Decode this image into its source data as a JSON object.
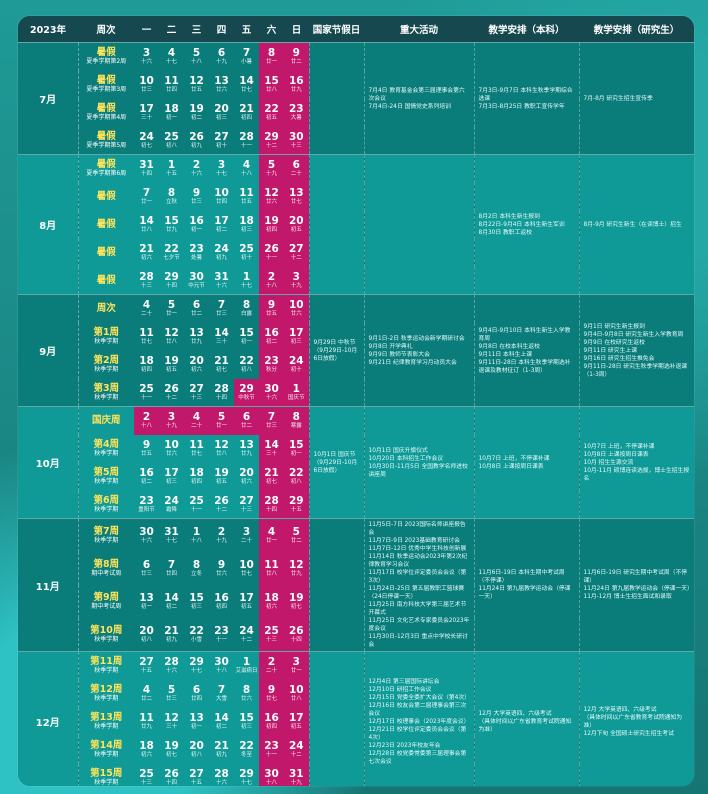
{
  "header": {
    "year": "2023年",
    "week": "周次",
    "d1": "一",
    "d2": "二",
    "d3": "三",
    "d4": "四",
    "d5": "五",
    "d6": "六",
    "d7": "日",
    "holiday": "国家节假日",
    "events": "重大活动",
    "teach_ug": "教学安排（本科）",
    "teach_pg": "教学安排（研究生）"
  },
  "months": [
    {
      "name": "7月",
      "holiday": "",
      "events": "7月4日 教育基金会第三届理事会第六次会议\n7月4日-24日 国情党史系列培训",
      "ug": "7月3日-9月7日 本科生秋季学期综合选课\n7月3日-8月25日 教职工宣传学年",
      "pg": "7月-8月 研究生招生宣传季",
      "rows": [
        {
          "w": "暑假",
          "s": "夏季学期第2周",
          "d": [
            [
              "3",
              "十六"
            ],
            [
              "4",
              "十七"
            ],
            [
              "5",
              "十八"
            ],
            [
              "6",
              "十九"
            ],
            [
              "7",
              "小暑"
            ],
            [
              "8",
              "廿一"
            ],
            [
              "9",
              "廿二"
            ]
          ]
        },
        {
          "w": "暑假",
          "s": "夏季学期第3周",
          "d": [
            [
              "10",
              "廿三"
            ],
            [
              "11",
              "廿四"
            ],
            [
              "12",
              "廿五"
            ],
            [
              "13",
              "廿六"
            ],
            [
              "14",
              "廿七"
            ],
            [
              "15",
              "廿八"
            ],
            [
              "16",
              "廿九"
            ]
          ]
        },
        {
          "w": "暑假",
          "s": "夏季学期第4周",
          "d": [
            [
              "17",
              "三十"
            ],
            [
              "18",
              "初一"
            ],
            [
              "19",
              "初二"
            ],
            [
              "20",
              "初三"
            ],
            [
              "21",
              "初四"
            ],
            [
              "22",
              "初五"
            ],
            [
              "23",
              "大暑"
            ]
          ]
        },
        {
          "w": "暑假",
          "s": "夏季学期第5周",
          "d": [
            [
              "24",
              "初七"
            ],
            [
              "25",
              "初八"
            ],
            [
              "26",
              "初九"
            ],
            [
              "27",
              "初十"
            ],
            [
              "28",
              "十一"
            ],
            [
              "29",
              "十二"
            ],
            [
              "30",
              "十三"
            ]
          ]
        }
      ]
    },
    {
      "name": "8月",
      "holiday": "",
      "events": "",
      "ug": "8月2日 本科生新生报到\n8月22日-9月4日 本科生新生军训\n8月30日 教职工返校",
      "pg": "8月-9月 研究生新生（在读博士）招生",
      "rows": [
        {
          "w": "暑假",
          "s": "夏季学期第6周",
          "d": [
            [
              "31",
              "十四"
            ],
            [
              "1",
              "十五"
            ],
            [
              "2",
              "十六"
            ],
            [
              "3",
              "十七"
            ],
            [
              "4",
              "十八"
            ],
            [
              "5",
              "十九"
            ],
            [
              "6",
              "二十"
            ]
          ]
        },
        {
          "w": "暑假",
          "s": "",
          "d": [
            [
              "7",
              "廿一"
            ],
            [
              "8",
              "立秋"
            ],
            [
              "9",
              "廿三"
            ],
            [
              "10",
              "廿四"
            ],
            [
              "11",
              "廿五"
            ],
            [
              "12",
              "廿六"
            ],
            [
              "13",
              "廿七"
            ]
          ]
        },
        {
          "w": "暑假",
          "s": "",
          "d": [
            [
              "14",
              "廿八"
            ],
            [
              "15",
              "廿九"
            ],
            [
              "16",
              "初一"
            ],
            [
              "17",
              "初二"
            ],
            [
              "18",
              "初三"
            ],
            [
              "19",
              "初四"
            ],
            [
              "20",
              "初五"
            ]
          ]
        },
        {
          "w": "暑假",
          "s": "",
          "d": [
            [
              "21",
              "初六"
            ],
            [
              "22",
              "七夕节"
            ],
            [
              "23",
              "处暑"
            ],
            [
              "24",
              "初九"
            ],
            [
              "25",
              "初十"
            ],
            [
              "26",
              "十一"
            ],
            [
              "27",
              "十二"
            ]
          ]
        },
        {
          "w": "暑假",
          "s": "",
          "d": [
            [
              "28",
              "十三"
            ],
            [
              "29",
              "十四"
            ],
            [
              "30",
              "中元节"
            ],
            [
              "31",
              "十六"
            ],
            [
              "1",
              "十七"
            ],
            [
              "2",
              "十八"
            ],
            [
              "3",
              "十九"
            ]
          ]
        }
      ]
    },
    {
      "name": "9月",
      "holiday": "9月29日 中秋节\n（9月29日-10月6日放假）",
      "events": "9月1日-2日 秋季运动会新学期研讨会\n9月8日 开学典礼\n9月9日 教师节表彰大会\n9月21日 纪律教育学习月动员大会",
      "ug": "9月4日-9月10日 本科生新生入学教育周\n9月8日 在校本科生返校\n9月11日 本科生上课\n9月11日-28日 本科生秋季学期选补退课及教材征订（1-3周）",
      "pg": "9月1日 研究生新生报到\n9月4日-9月8日 研究生新生入学教育周\n9月9日 在校研究生返校\n9月11日 研究生上课\n9月16日 研究生招生推免会\n9月11日-28日 研究生秋季学期选补退课（1-3周）",
      "rows": [
        {
          "w": "周次",
          "s": "",
          "d": [
            [
              "4",
              "二十"
            ],
            [
              "5",
              "廿一"
            ],
            [
              "6",
              "廿二"
            ],
            [
              "7",
              "廿三"
            ],
            [
              "8",
              "白露"
            ],
            [
              "9",
              "廿五"
            ],
            [
              "10",
              "廿六"
            ]
          ]
        },
        {
          "w": "第1周",
          "s": "秋季学期",
          "d": [
            [
              "11",
              "廿七"
            ],
            [
              "12",
              "廿八"
            ],
            [
              "13",
              "廿九"
            ],
            [
              "14",
              "三十"
            ],
            [
              "15",
              "初一"
            ],
            [
              "16",
              "初二"
            ],
            [
              "17",
              "初三"
            ]
          ]
        },
        {
          "w": "第2周",
          "s": "秋季学期",
          "d": [
            [
              "18",
              "初四"
            ],
            [
              "19",
              "初五"
            ],
            [
              "20",
              "初六"
            ],
            [
              "21",
              "初七"
            ],
            [
              "22",
              "初八"
            ],
            [
              "23",
              "秋分"
            ],
            [
              "24",
              "初十"
            ]
          ]
        },
        {
          "w": "第3周",
          "s": "秋季学期",
          "d": [
            [
              "25",
              "十一"
            ],
            [
              "26",
              "十二"
            ],
            [
              "27",
              "十三"
            ],
            [
              "28",
              "十四"
            ],
            [
              "29",
              "中秋节"
            ],
            [
              "30",
              "十六"
            ],
            [
              "1",
              "国庆节"
            ]
          ]
        }
      ]
    },
    {
      "name": "10月",
      "holiday": "10月1日 国庆节\n（9月29日-10月6日放假）",
      "events": "10月1日 国庆升旗仪式\n10月20日 本科招生工作会议\n10月30日-11月5日 全国教学名师进校讲座周",
      "ug": "10月7日 上班，不停课补课\n10月8日 上课按周日课表",
      "pg": "10月7日 上班，不停课补课\n10月8日 上课按周日课表\n10月 招生生源交流\n10月-11月 硕博连读选拔，博士生招生报名",
      "rows": [
        {
          "w": "国庆周",
          "s": "",
          "d": [
            [
              "2",
              "十八"
            ],
            [
              "3",
              "十九"
            ],
            [
              "4",
              "二十"
            ],
            [
              "5",
              "廿一"
            ],
            [
              "6",
              "廿二"
            ],
            [
              "7",
              "廿三"
            ],
            [
              "8",
              "寒露"
            ]
          ]
        },
        {
          "w": "第4周",
          "s": "秋季学期",
          "d": [
            [
              "9",
              "廿五"
            ],
            [
              "10",
              "廿六"
            ],
            [
              "11",
              "廿七"
            ],
            [
              "12",
              "廿八"
            ],
            [
              "13",
              "廿九"
            ],
            [
              "14",
              "三十"
            ],
            [
              "15",
              "初一"
            ]
          ]
        },
        {
          "w": "第5周",
          "s": "秋季学期",
          "d": [
            [
              "16",
              "初二"
            ],
            [
              "17",
              "初三"
            ],
            [
              "18",
              "初四"
            ],
            [
              "19",
              "初五"
            ],
            [
              "20",
              "初六"
            ],
            [
              "21",
              "初七"
            ],
            [
              "22",
              "初八"
            ]
          ]
        },
        {
          "w": "第6周",
          "s": "秋季学期",
          "d": [
            [
              "23",
              "重阳节"
            ],
            [
              "24",
              "霜降"
            ],
            [
              "25",
              "十一"
            ],
            [
              "26",
              "十二"
            ],
            [
              "27",
              "十三"
            ],
            [
              "28",
              "十四"
            ],
            [
              "29",
              "十五"
            ]
          ]
        }
      ]
    },
    {
      "name": "11月",
      "holiday": "",
      "events": "11月5日-7日 2023国际名师讲座报告会\n11月7日-9日 2023基础教育研讨会\n11月7日-12日 优秀中学生科技创新展\n11月14日 秋季运动会2023年第2次纪律教育学习会议\n11月17日 校学位评定委员会会议（第3次）\n11月24日-25日 第五届教职工篮球赛（24日停课一天）\n11月25日 南方科技大学第三届艺术节开幕式\n11月25日 文化艺术专家委员会2023年度会议\n11月30日-12月3日 重点中学校长研讨会",
      "ug": "11月6日-19日 本科生期中考试周（不停课）\n11月24日 第九届教学运动会（停课一天）",
      "pg": "11月6日-19日 研究生期中考试周（不停课）\n11月24日 第九届教学运动会（停课一天）\n11月-12月 博士生招生面试和录取",
      "rows": [
        {
          "w": "第7周",
          "s": "秋季学期",
          "d": [
            [
              "30",
              "十六"
            ],
            [
              "31",
              "十七"
            ],
            [
              "1",
              "十八"
            ],
            [
              "2",
              "十九"
            ],
            [
              "3",
              "二十"
            ],
            [
              "4",
              "廿一"
            ],
            [
              "5",
              "廿二"
            ]
          ]
        },
        {
          "w": "第8周",
          "s": "期中考试周",
          "d": [
            [
              "6",
              "廿三"
            ],
            [
              "7",
              "廿四"
            ],
            [
              "8",
              "立冬"
            ],
            [
              "9",
              "廿六"
            ],
            [
              "10",
              "廿七"
            ],
            [
              "11",
              "廿八"
            ],
            [
              "12",
              "廿九"
            ]
          ]
        },
        {
          "w": "第9周",
          "s": "期中考试周",
          "d": [
            [
              "13",
              "初一"
            ],
            [
              "14",
              "初二"
            ],
            [
              "15",
              "初三"
            ],
            [
              "16",
              "初四"
            ],
            [
              "17",
              "初五"
            ],
            [
              "18",
              "初六"
            ],
            [
              "19",
              "初七"
            ]
          ]
        },
        {
          "w": "第10周",
          "s": "秋季学期",
          "d": [
            [
              "20",
              "初八"
            ],
            [
              "21",
              "初九"
            ],
            [
              "22",
              "小雪"
            ],
            [
              "23",
              "十一"
            ],
            [
              "24",
              "十二"
            ],
            [
              "25",
              "十三"
            ],
            [
              "26",
              "十四"
            ]
          ]
        }
      ]
    },
    {
      "name": "12月",
      "holiday": "",
      "events": "12月4日 第三届国际讲坛会\n12月10日 研招工作会议\n12月15日 党委全委扩大会议（第4次）\n12月16日 校友会第二届理事会第三次会议\n12月17日 校理事会（2023年度会议）\n12月21日 校学位评定委员会会议（第4次）\n12月23日 2023年校友年会\n12月28日 校党委常委第三届理事会第七次会议",
      "ug": "12月 大学英语四、六级考试\n（具体时间以广东省教育考试院通知为准）",
      "pg": "12月 大学英语四、六级考试\n（具体时间以广东省教育考试院通知为准）\n12月下旬 全国硕士研究生招生考试",
      "rows": [
        {
          "w": "第11周",
          "s": "秋季学期",
          "d": [
            [
              "27",
              "十五"
            ],
            [
              "28",
              "十六"
            ],
            [
              "29",
              "十七"
            ],
            [
              "30",
              "十八"
            ],
            [
              "1",
              "艾滋病日"
            ],
            [
              "2",
              "二十"
            ],
            [
              "3",
              "廿一"
            ]
          ]
        },
        {
          "w": "第12周",
          "s": "秋季学期",
          "d": [
            [
              "4",
              "廿二"
            ],
            [
              "5",
              "廿三"
            ],
            [
              "6",
              "廿四"
            ],
            [
              "7",
              "大雪"
            ],
            [
              "8",
              "廿六"
            ],
            [
              "9",
              "廿七"
            ],
            [
              "10",
              "廿八"
            ]
          ]
        },
        {
          "w": "第13周",
          "s": "秋季学期",
          "d": [
            [
              "11",
              "廿九"
            ],
            [
              "12",
              "三十"
            ],
            [
              "13",
              "初一"
            ],
            [
              "14",
              "初二"
            ],
            [
              "15",
              "初三"
            ],
            [
              "16",
              "初四"
            ],
            [
              "17",
              "初五"
            ]
          ]
        },
        {
          "w": "第14周",
          "s": "秋季学期",
          "d": [
            [
              "18",
              "初六"
            ],
            [
              "19",
              "初七"
            ],
            [
              "20",
              "初八"
            ],
            [
              "21",
              "初九"
            ],
            [
              "22",
              "冬至"
            ],
            [
              "23",
              "十一"
            ],
            [
              "24",
              "十二"
            ]
          ]
        },
        {
          "w": "第15周",
          "s": "秋季学期",
          "d": [
            [
              "25",
              "十三"
            ],
            [
              "26",
              "十四"
            ],
            [
              "27",
              "十五"
            ],
            [
              "28",
              "十六"
            ],
            [
              "29",
              "十七"
            ],
            [
              "30",
              "十八"
            ],
            [
              "31",
              "十九"
            ]
          ]
        }
      ]
    }
  ],
  "colors": {
    "header": "#15484f",
    "teal": "#0a7d7b",
    "teal_alt": "#0f9a97",
    "magenta": "#c2186b",
    "week_label": "#ffe45a"
  }
}
